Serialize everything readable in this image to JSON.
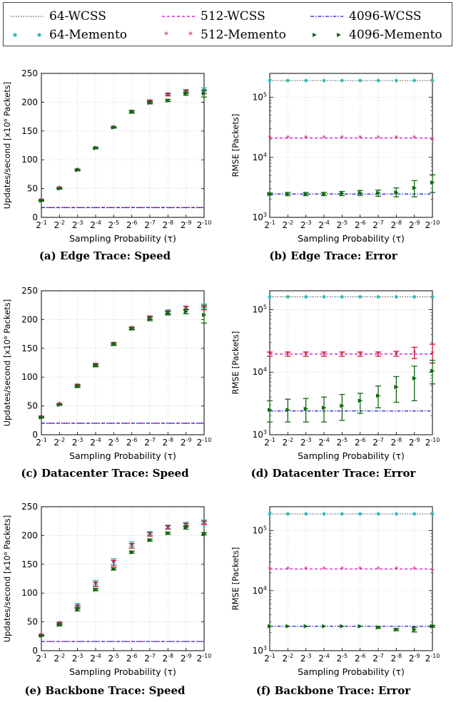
{
  "legend": [
    {
      "label": "64-WCSS",
      "color": "#555555",
      "style": "dotted-line"
    },
    {
      "label": "512-WCSS",
      "color": "#cc00cc",
      "style": "dashed-line"
    },
    {
      "label": "4096-WCSS",
      "color": "#1a1acc",
      "style": "dashdot-line"
    },
    {
      "label": "64-Memento",
      "color": "#33bbbb",
      "style": "circle"
    },
    {
      "label": "512-Memento",
      "color": "#cc1133",
      "style": "star"
    },
    {
      "label": "4096-Memento",
      "color": "#116611",
      "style": "triangle"
    }
  ],
  "chart_data": [
    {
      "id": "a",
      "type": "scatter",
      "kind": "speed",
      "caption": "(a) Edge Trace: Speed",
      "xlabel": "Sampling Probability (τ)",
      "ylabel": "Updates/second [x10⁶ Packets]",
      "x_exponents": [
        1,
        2,
        3,
        4,
        5,
        6,
        7,
        8,
        9,
        10
      ],
      "x_ticks": [
        "2^-1",
        "2^-2",
        "2^-3",
        "2^-4",
        "2^-5",
        "2^-6",
        "2^-7",
        "2^-8",
        "2^-9",
        "2^-10"
      ],
      "ylim": [
        0,
        250
      ],
      "y_ticks": [
        0,
        50,
        100,
        150,
        200,
        250
      ],
      "grid": true,
      "wcss": [
        17,
        17,
        17
      ],
      "series": [
        {
          "values": [
            30,
            51,
            83,
            121,
            157,
            184,
            202,
            214,
            219,
            222
          ],
          "err": [
            1,
            1,
            1,
            1,
            1,
            2,
            2,
            2,
            3,
            3
          ]
        },
        {
          "values": [
            30,
            51,
            82,
            120,
            156,
            183,
            201,
            213,
            218,
            218
          ],
          "err": [
            1,
            1,
            1,
            1,
            1,
            2,
            2,
            2,
            3,
            3
          ]
        },
        {
          "values": [
            29,
            50,
            82,
            120,
            156,
            183,
            199,
            203,
            215,
            215
          ],
          "err": [
            1,
            1,
            1,
            1,
            1,
            2,
            2,
            2,
            3,
            6
          ]
        }
      ]
    },
    {
      "id": "b",
      "type": "scatter",
      "kind": "error",
      "caption": "(b) Edge Trace: Error",
      "xlabel": "Sampling Probability (τ)",
      "ylabel": "RMSE [Packets]",
      "x_exponents": [
        1,
        2,
        3,
        4,
        5,
        6,
        7,
        8,
        9,
        10
      ],
      "x_ticks": [
        "2^-1",
        "2^-2",
        "2^-3",
        "2^-4",
        "2^-5",
        "2^-6",
        "2^-7",
        "2^-8",
        "2^-9",
        "2^-10"
      ],
      "y_scale": "log",
      "ylim": [
        1000,
        250000
      ],
      "y_ticks": [
        "10^3",
        "10^4",
        "10^5"
      ],
      "grid": true,
      "wcss": [
        190000,
        21000,
        2450
      ],
      "series": [
        {
          "values": [
            190000,
            190000,
            190000,
            190000,
            190000,
            190000,
            190000,
            190000,
            190000,
            190000
          ],
          "err_lo": [
            0,
            0,
            0,
            0,
            0,
            0,
            0,
            0,
            0,
            0
          ],
          "err_hi": [
            0,
            0,
            0,
            0,
            0,
            0,
            0,
            0,
            0,
            0
          ]
        },
        {
          "values": [
            21000,
            21000,
            21000,
            21000,
            21000,
            21000,
            21000,
            21000,
            21000,
            19500
          ],
          "err_lo": [
            0,
            0,
            0,
            0,
            0,
            0,
            0,
            0,
            0,
            0
          ],
          "err_hi": [
            0,
            0,
            0,
            0,
            0,
            0,
            0,
            0,
            0,
            0
          ]
        },
        {
          "values": [
            2450,
            2450,
            2450,
            2450,
            2500,
            2550,
            2550,
            2600,
            3100,
            3800
          ],
          "err_lo": [
            100,
            150,
            150,
            150,
            200,
            250,
            300,
            400,
            900,
            1200
          ],
          "err_hi": [
            100,
            150,
            150,
            150,
            200,
            250,
            300,
            500,
            1000,
            1300
          ]
        }
      ]
    },
    {
      "id": "c",
      "type": "scatter",
      "kind": "speed",
      "caption": "(c) Datacenter Trace: Speed",
      "xlabel": "Sampling Probability (τ)",
      "ylabel": "Updates/second [x10⁶ Packets]",
      "x_exponents": [
        1,
        2,
        3,
        4,
        5,
        6,
        7,
        8,
        9,
        10
      ],
      "x_ticks": [
        "2^-1",
        "2^-2",
        "2^-3",
        "2^-4",
        "2^-5",
        "2^-6",
        "2^-7",
        "2^-8",
        "2^-9",
        "2^-10"
      ],
      "ylim": [
        0,
        250
      ],
      "y_ticks": [
        0,
        50,
        100,
        150,
        200,
        250
      ],
      "grid": true,
      "wcss": [
        20,
        20,
        20
      ],
      "series": [
        {
          "values": [
            31,
            53,
            86,
            122,
            158,
            185,
            203,
            214,
            220,
            223
          ],
          "err": [
            1,
            1,
            2,
            2,
            2,
            2,
            3,
            3,
            3,
            4
          ]
        },
        {
          "values": [
            31,
            53,
            85,
            121,
            158,
            185,
            203,
            212,
            220,
            221
          ],
          "err": [
            1,
            1,
            2,
            2,
            2,
            2,
            3,
            3,
            3,
            4
          ]
        },
        {
          "values": [
            30,
            52,
            84,
            120,
            157,
            184,
            201,
            211,
            214,
            208
          ],
          "err": [
            1,
            1,
            2,
            2,
            2,
            2,
            3,
            3,
            4,
            14
          ]
        }
      ]
    },
    {
      "id": "d",
      "type": "scatter",
      "kind": "error",
      "caption": "(d) Datacenter Trace: Error",
      "xlabel": "Sampling Probability (τ)",
      "ylabel": "RMSE [Packets]",
      "x_exponents": [
        1,
        2,
        3,
        4,
        5,
        6,
        7,
        8,
        9,
        10
      ],
      "x_ticks": [
        "2^-1",
        "2^-2",
        "2^-3",
        "2^-4",
        "2^-5",
        "2^-6",
        "2^-7",
        "2^-8",
        "2^-9",
        "2^-10"
      ],
      "y_scale": "log",
      "ylim": [
        1000,
        200000
      ],
      "y_ticks": [
        "10^3",
        "10^4",
        "10^5"
      ],
      "grid": true,
      "wcss": [
        160000,
        19500,
        2400
      ],
      "series": [
        {
          "values": [
            160000,
            160000,
            160000,
            160000,
            160000,
            160000,
            160000,
            160000,
            160000,
            160000
          ],
          "err_lo": [
            0,
            0,
            0,
            0,
            0,
            0,
            0,
            0,
            0,
            0
          ],
          "err_hi": [
            0,
            0,
            0,
            0,
            0,
            0,
            0,
            0,
            0,
            0
          ]
        },
        {
          "values": [
            19500,
            19500,
            19500,
            19500,
            19500,
            19500,
            19500,
            19500,
            20500,
            20000
          ],
          "err_lo": [
            1500,
            1500,
            1500,
            1500,
            1500,
            1500,
            1500,
            1500,
            4000,
            6000
          ],
          "err_hi": [
            1500,
            1500,
            1500,
            1500,
            1500,
            1500,
            1500,
            2000,
            4500,
            8000
          ]
        },
        {
          "values": [
            2500,
            2500,
            2600,
            2700,
            2900,
            3500,
            4200,
            5800,
            8000,
            10500
          ],
          "err_lo": [
            900,
            900,
            1000,
            1100,
            1200,
            1300,
            1500,
            2500,
            4500,
            4000
          ],
          "err_hi": [
            1000,
            1200,
            1200,
            1300,
            1500,
            1100,
            1800,
            2700,
            4500,
            5000
          ]
        }
      ]
    },
    {
      "id": "e",
      "type": "scatter",
      "kind": "speed",
      "caption": "(e) Backbone Trace: Speed",
      "xlabel": "Sampling Probability (τ)",
      "ylabel": "Updates/second [x10⁶ Packets]",
      "x_exponents": [
        1,
        2,
        3,
        4,
        5,
        6,
        7,
        8,
        9,
        10
      ],
      "x_ticks": [
        "2^-1",
        "2^-2",
        "2^-3",
        "2^-4",
        "2^-5",
        "2^-6",
        "2^-7",
        "2^-8",
        "2^-9",
        "2^-10"
      ],
      "ylim": [
        0,
        250
      ],
      "y_ticks": [
        0,
        50,
        100,
        150,
        200,
        250
      ],
      "grid": true,
      "wcss": [
        16,
        16,
        16
      ],
      "series": [
        {
          "values": [
            27,
            48,
            79,
            118,
            155,
            185,
            204,
            215,
            220,
            224
          ],
          "err": [
            1,
            2,
            3,
            4,
            5,
            4,
            3,
            3,
            3,
            3
          ]
        },
        {
          "values": [
            27,
            47,
            76,
            115,
            152,
            182,
            202,
            214,
            218,
            222
          ],
          "err": [
            1,
            2,
            3,
            4,
            5,
            4,
            3,
            3,
            3,
            3
          ]
        },
        {
          "values": [
            26,
            45,
            72,
            106,
            142,
            171,
            192,
            204,
            214,
            203
          ],
          "err": [
            1,
            2,
            3,
            2,
            2,
            2,
            2,
            2,
            3,
            2
          ]
        }
      ]
    },
    {
      "id": "f",
      "type": "scatter",
      "kind": "error",
      "caption": "(f) Backbone Trace: Error",
      "xlabel": "Sampling Probability (τ)",
      "ylabel": "RMSE [Packets]",
      "x_exponents": [
        1,
        2,
        3,
        4,
        5,
        6,
        7,
        8,
        9,
        10
      ],
      "x_ticks": [
        "2^-1",
        "2^-2",
        "2^-3",
        "2^-4",
        "2^-5",
        "2^-6",
        "2^-7",
        "2^-8",
        "2^-9",
        "2^-10"
      ],
      "y_scale": "log",
      "ylim": [
        1000,
        250000
      ],
      "y_ticks": [
        "10^3",
        "10^4",
        "10^5"
      ],
      "grid": true,
      "wcss": [
        190000,
        23000,
        2550
      ],
      "series": [
        {
          "values": [
            190000,
            190000,
            190000,
            190000,
            190000,
            190000,
            190000,
            190000,
            190000,
            190000
          ],
          "err_lo": [
            0,
            0,
            0,
            0,
            0,
            0,
            0,
            0,
            0,
            0
          ],
          "err_hi": [
            0,
            0,
            0,
            0,
            0,
            0,
            0,
            0,
            0,
            0
          ]
        },
        {
          "values": [
            23000,
            23000,
            23000,
            23000,
            23000,
            23000,
            23000,
            23000,
            23000,
            21500
          ],
          "err_lo": [
            0,
            0,
            0,
            0,
            0,
            0,
            0,
            0,
            0,
            0
          ],
          "err_hi": [
            0,
            0,
            0,
            0,
            0,
            0,
            0,
            0,
            0,
            0
          ]
        },
        {
          "values": [
            2550,
            2550,
            2550,
            2550,
            2550,
            2550,
            2450,
            2250,
            2250,
            2550
          ],
          "err_lo": [
            50,
            50,
            50,
            50,
            50,
            50,
            100,
            100,
            200,
            100
          ],
          "err_hi": [
            50,
            50,
            50,
            50,
            50,
            50,
            100,
            100,
            200,
            100
          ]
        }
      ]
    }
  ]
}
